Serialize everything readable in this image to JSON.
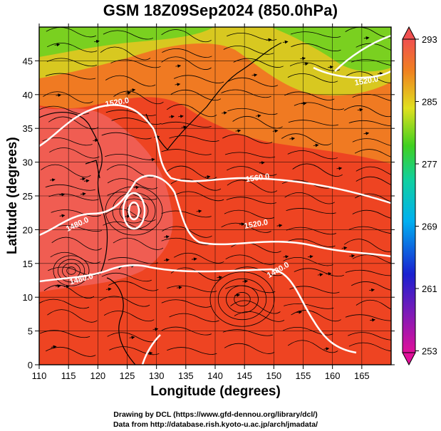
{
  "title": "GSM 18Z09Sep2024 (850.0hPa)",
  "x_axis": {
    "label": "Longitude (degrees)",
    "ticks": [
      "110",
      "115",
      "120",
      "125",
      "130",
      "135",
      "140",
      "145",
      "150",
      "155",
      "160",
      "165"
    ]
  },
  "y_axis": {
    "label": "Latitude  (degrees)",
    "ticks": [
      "0",
      "5",
      "10",
      "15",
      "20",
      "25",
      "30",
      "35",
      "40",
      "45"
    ]
  },
  "colorbar": {
    "labels": [
      "293",
      "285",
      "277",
      "269",
      "261",
      "253"
    ]
  },
  "contour_labels": [
    {
      "text": "1560.0"
    },
    {
      "text": "1520.0"
    },
    {
      "text": "1520.0"
    },
    {
      "text": "1520.0"
    },
    {
      "text": "1480.0"
    },
    {
      "text": "1480.0"
    },
    {
      "text": "1480.0"
    }
  ],
  "credits": {
    "line1": "Drawing by DCL (https://www.gfd-dennou.org/library/dcl/)",
    "line2": "Data from http://database.rish.kyoto-u.ac.jp/arch/jmadata/"
  }
}
